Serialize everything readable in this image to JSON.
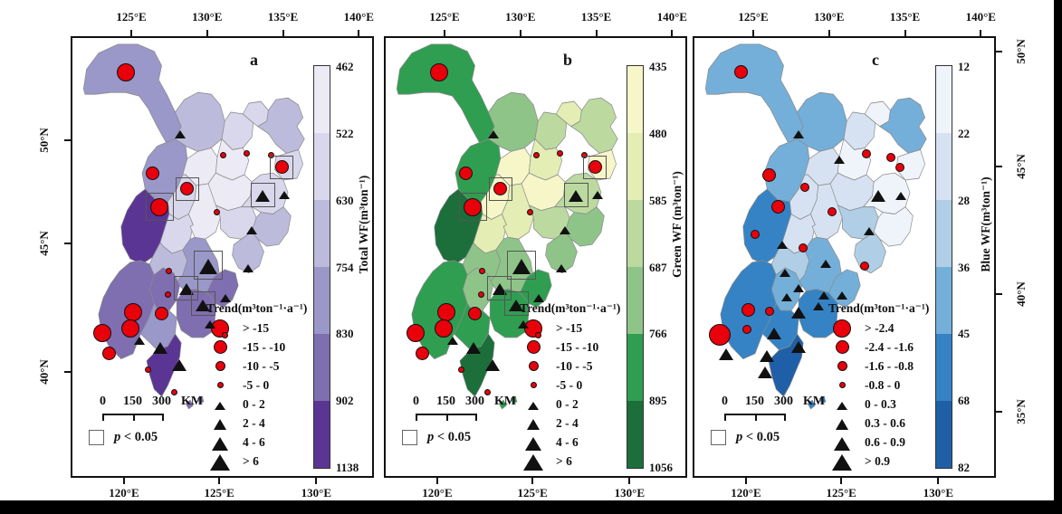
{
  "figure": {
    "background": "#ffffff",
    "marker_style": {
      "circle_color": "#e8000b",
      "triangle_color": "#111111",
      "outline_color": "#111111",
      "significance_box_color": "#555555"
    },
    "left_axis": {
      "ticks": [
        "50°N",
        "45°N",
        "40°N"
      ]
    },
    "right_axis": {
      "ticks": [
        "50°N",
        "45°N",
        "40°N",
        "35°N"
      ]
    },
    "panels": [
      {
        "label": "a",
        "top_axis_ticks": [
          "125°E",
          "130°E",
          "135°E",
          "140°E"
        ],
        "bottom_axis_ticks": [
          "120°E",
          "125°E",
          "130°E"
        ],
        "colorbar": {
          "title": "Total WF(m³ton⁻¹)",
          "tick_labels": [
            "462",
            "522",
            "630",
            "754",
            "830",
            "902",
            "1138"
          ],
          "segment_colors": [
            "#ecebf5",
            "#d9d7eb",
            "#bdbbdc",
            "#9a97c9",
            "#7f6eb0",
            "#5b3594"
          ]
        },
        "legend": {
          "title": "Trend(m³ton⁻¹·a⁻¹)",
          "circle_labels": [
            "> -15",
            "-15 - -10",
            "-10 - -5",
            "-5 - 0"
          ],
          "triangle_labels": [
            "0 - 2",
            "2 - 4",
            "4 - 6",
            "> 6"
          ]
        },
        "scalebar_labels": [
          "0",
          "150",
          "300",
          "KM"
        ],
        "significance_label": "p < 0.05",
        "map": {
          "region_color_indices": [
            4,
            3,
            2,
            2,
            3,
            2,
            4,
            1,
            1,
            1,
            2,
            2,
            6,
            2,
            1,
            2,
            3,
            3,
            3,
            4,
            5,
            5,
            4,
            5,
            5,
            6
          ],
          "markers": [
            {
              "shape": "circle",
              "size": "L",
              "x": 17.6,
              "y": 7.8
            },
            {
              "shape": "triangle",
              "size": "S",
              "x": 35.5,
              "y": 21.5
            },
            {
              "shape": "circle",
              "size": "M",
              "x": 26.3,
              "y": 30.7
            },
            {
              "shape": "circle",
              "size": "M",
              "x": 37.9,
              "y": 34.2,
              "boxed": true
            },
            {
              "shape": "circle",
              "size": "L",
              "x": 28.7,
              "y": 38.3,
              "boxed": true
            },
            {
              "shape": "circle",
              "size": "T",
              "x": 49.6,
              "y": 26.6
            },
            {
              "shape": "circle",
              "size": "T",
              "x": 57.6,
              "y": 26.2
            },
            {
              "shape": "circle",
              "size": "T",
              "x": 65.4,
              "y": 26.6
            },
            {
              "shape": "circle",
              "size": "M",
              "x": 69.0,
              "y": 29.3,
              "boxed": true
            },
            {
              "shape": "triangle",
              "size": "M",
              "x": 62.7,
              "y": 35.5,
              "boxed": true
            },
            {
              "shape": "triangle",
              "size": "S",
              "x": 69.9,
              "y": 35.2
            },
            {
              "shape": "circle",
              "size": "T",
              "x": 47.5,
              "y": 39.5
            },
            {
              "shape": "triangle",
              "size": "S",
              "x": 59.1,
              "y": 43.2
            },
            {
              "shape": "triangle",
              "size": "L",
              "x": 44.8,
              "y": 51.4,
              "boxed": true
            },
            {
              "shape": "triangle",
              "size": "S",
              "x": 57.9,
              "y": 51.8
            },
            {
              "shape": "circle",
              "size": "T",
              "x": 31.9,
              "y": 52.7
            },
            {
              "shape": "triangle",
              "size": "M",
              "x": 37.6,
              "y": 56.6,
              "boxed": true
            },
            {
              "shape": "circle",
              "size": "T",
              "x": 31.6,
              "y": 58.0
            },
            {
              "shape": "triangle",
              "size": "M",
              "x": 43.0,
              "y": 60.2,
              "boxed": true
            },
            {
              "shape": "triangle",
              "size": "S",
              "x": 50.4,
              "y": 58.6
            },
            {
              "shape": "circle",
              "size": "L",
              "x": 20.0,
              "y": 62.1
            },
            {
              "shape": "circle",
              "size": "M",
              "x": 29.3,
              "y": 62.3
            },
            {
              "shape": "circle",
              "size": "L",
              "x": 19.1,
              "y": 65.8
            },
            {
              "shape": "circle",
              "size": "L",
              "x": 9.9,
              "y": 66.8
            },
            {
              "shape": "triangle",
              "size": "S",
              "x": 22.1,
              "y": 68.2
            },
            {
              "shape": "triangle",
              "size": "M",
              "x": 29.0,
              "y": 69.9
            },
            {
              "shape": "circle",
              "size": "M",
              "x": 12.2,
              "y": 71.5
            },
            {
              "shape": "triangle",
              "size": "M",
              "x": 35.2,
              "y": 73.8
            },
            {
              "shape": "circle",
              "size": "T",
              "x": 24.8,
              "y": 75.2
            },
            {
              "shape": "circle",
              "size": "T",
              "x": 33.7,
              "y": 80.3
            },
            {
              "shape": "triangle",
              "size": "S",
              "x": 45.4,
              "y": 64.5
            },
            {
              "shape": "circle",
              "size": "T",
              "x": 50.4,
              "y": 67.4
            }
          ]
        }
      },
      {
        "label": "b",
        "top_axis_ticks": [
          "125°E",
          "130°E",
          "135°E",
          "140°E"
        ],
        "bottom_axis_ticks": [
          "120°E",
          "125°E",
          "130°E"
        ],
        "colorbar": {
          "title": "Green WF (m³ton⁻¹)",
          "tick_labels": [
            "435",
            "480",
            "585",
            "687",
            "766",
            "895",
            "1056"
          ],
          "segment_colors": [
            "#f6f6c9",
            "#e4edb4",
            "#bcda9f",
            "#8fc489",
            "#2f9e51",
            "#1c6f3a"
          ]
        },
        "legend": {
          "title": "Trend(m³ton⁻¹·a⁻¹)",
          "circle_labels": [
            "> -15",
            "-15 - -10",
            "-10 - -5",
            "-5 - 0"
          ],
          "triangle_labels": [
            "0 - 2",
            "2 - 4",
            "4 - 6",
            "> 6"
          ]
        },
        "scalebar_labels": [
          "0",
          "150",
          "300",
          "KM"
        ],
        "significance_label": "p < 0.05",
        "map": {
          "region_color_indices": [
            5,
            4,
            3,
            2,
            3,
            1,
            5,
            1,
            2,
            1,
            3,
            1,
            6,
            2,
            2,
            3,
            4,
            4,
            4,
            4,
            5,
            4,
            5,
            5,
            5,
            6
          ],
          "markers": [
            {
              "shape": "circle",
              "size": "L",
              "x": 17.6,
              "y": 7.8
            },
            {
              "shape": "triangle",
              "size": "S",
              "x": 35.5,
              "y": 21.5
            },
            {
              "shape": "circle",
              "size": "M",
              "x": 26.3,
              "y": 30.7
            },
            {
              "shape": "circle",
              "size": "M",
              "x": 37.9,
              "y": 34.2,
              "boxed": true
            },
            {
              "shape": "circle",
              "size": "L",
              "x": 28.7,
              "y": 38.3,
              "boxed": true
            },
            {
              "shape": "circle",
              "size": "T",
              "x": 49.6,
              "y": 26.6
            },
            {
              "shape": "circle",
              "size": "T",
              "x": 57.6,
              "y": 26.2
            },
            {
              "shape": "circle",
              "size": "T",
              "x": 65.4,
              "y": 26.6
            },
            {
              "shape": "circle",
              "size": "M",
              "x": 69.0,
              "y": 29.3,
              "boxed": true
            },
            {
              "shape": "triangle",
              "size": "M",
              "x": 62.7,
              "y": 35.5,
              "boxed": true
            },
            {
              "shape": "triangle",
              "size": "S",
              "x": 69.9,
              "y": 35.2
            },
            {
              "shape": "circle",
              "size": "T",
              "x": 47.5,
              "y": 39.5
            },
            {
              "shape": "triangle",
              "size": "S",
              "x": 59.1,
              "y": 43.2
            },
            {
              "shape": "triangle",
              "size": "L",
              "x": 44.8,
              "y": 51.4,
              "boxed": true
            },
            {
              "shape": "triangle",
              "size": "S",
              "x": 57.9,
              "y": 51.8
            },
            {
              "shape": "circle",
              "size": "T",
              "x": 31.9,
              "y": 52.7
            },
            {
              "shape": "triangle",
              "size": "M",
              "x": 37.6,
              "y": 56.6,
              "boxed": true
            },
            {
              "shape": "circle",
              "size": "T",
              "x": 31.6,
              "y": 58.0
            },
            {
              "shape": "triangle",
              "size": "M",
              "x": 43.0,
              "y": 60.2,
              "boxed": true
            },
            {
              "shape": "triangle",
              "size": "S",
              "x": 50.4,
              "y": 58.6
            },
            {
              "shape": "circle",
              "size": "L",
              "x": 20.0,
              "y": 62.1
            },
            {
              "shape": "circle",
              "size": "M",
              "x": 29.3,
              "y": 62.3
            },
            {
              "shape": "circle",
              "size": "L",
              "x": 19.1,
              "y": 65.8
            },
            {
              "shape": "circle",
              "size": "L",
              "x": 9.9,
              "y": 66.8
            },
            {
              "shape": "triangle",
              "size": "S",
              "x": 22.1,
              "y": 68.2
            },
            {
              "shape": "triangle",
              "size": "M",
              "x": 29.0,
              "y": 69.9
            },
            {
              "shape": "circle",
              "size": "M",
              "x": 12.2,
              "y": 71.5
            },
            {
              "shape": "triangle",
              "size": "M",
              "x": 35.2,
              "y": 73.8
            },
            {
              "shape": "circle",
              "size": "T",
              "x": 24.8,
              "y": 75.2
            },
            {
              "shape": "circle",
              "size": "T",
              "x": 33.7,
              "y": 80.3
            },
            {
              "shape": "triangle",
              "size": "S",
              "x": 45.4,
              "y": 64.5
            },
            {
              "shape": "circle",
              "size": "T",
              "x": 50.4,
              "y": 67.4
            }
          ]
        }
      },
      {
        "label": "c",
        "top_axis_ticks": [
          "125°E",
          "130°E",
          "135°E",
          "140°E"
        ],
        "bottom_axis_ticks": [
          "120°E",
          "125°E",
          "130°E"
        ],
        "colorbar": {
          "title": "Blue WF(m³ton⁻¹)",
          "tick_labels": [
            "12",
            "22",
            "28",
            "36",
            "45",
            "68",
            "82"
          ],
          "segment_colors": [
            "#eff4fb",
            "#d6e2f2",
            "#b0cfe6",
            "#74afd9",
            "#3583c4",
            "#1f5fa8"
          ]
        },
        "legend": {
          "title": "Trend(m³ton⁻¹·a⁻¹)",
          "circle_labels": [
            "> -2.4",
            "-2.4 - -1.6",
            "-1.6 - -0.8",
            "-0.8 - 0"
          ],
          "triangle_labels": [
            "0 - 0.3",
            "0.3 - 0.6",
            "0.6 - 0.9",
            "> 0.9"
          ]
        },
        "scalebar_labels": [
          "0",
          "150",
          "300",
          "KM"
        ],
        "significance_label": "p < 0.05",
        "map": {
          "region_color_indices": [
            4,
            4,
            2,
            1,
            4,
            1,
            4,
            2,
            1,
            2,
            1,
            2,
            5,
            2,
            2,
            3,
            1,
            3,
            3,
            4,
            5,
            4,
            5,
            5,
            4,
            6
          ],
          "markers": [
            {
              "shape": "circle",
              "size": "M",
              "x": 15.5,
              "y": 7.6
            },
            {
              "shape": "triangle",
              "size": "S",
              "x": 34.3,
              "y": 21.5
            },
            {
              "shape": "circle",
              "size": "S",
              "x": 56.7,
              "y": 26.2
            },
            {
              "shape": "triangle",
              "size": "S",
              "x": 47.8,
              "y": 27.3
            },
            {
              "shape": "circle",
              "size": "S",
              "x": 64.8,
              "y": 27.0
            },
            {
              "shape": "circle",
              "size": "S",
              "x": 67.8,
              "y": 29.3
            },
            {
              "shape": "circle",
              "size": "M",
              "x": 24.5,
              "y": 31.1
            },
            {
              "shape": "circle",
              "size": "S",
              "x": 36.4,
              "y": 33.8
            },
            {
              "shape": "triangle",
              "size": "M",
              "x": 60.6,
              "y": 35.5
            },
            {
              "shape": "triangle",
              "size": "S",
              "x": 68.1,
              "y": 35.5
            },
            {
              "shape": "circle",
              "size": "M",
              "x": 27.5,
              "y": 38.3
            },
            {
              "shape": "circle",
              "size": "S",
              "x": 45.4,
              "y": 39.3
            },
            {
              "shape": "triangle",
              "size": "S",
              "x": 57.6,
              "y": 43.4
            },
            {
              "shape": "circle",
              "size": "S",
              "x": 20.0,
              "y": 44.5
            },
            {
              "shape": "triangle",
              "size": "S",
              "x": 29.0,
              "y": 46.5
            },
            {
              "shape": "circle",
              "size": "S",
              "x": 35.8,
              "y": 47.5
            },
            {
              "shape": "triangle",
              "size": "S",
              "x": 43.3,
              "y": 50.8
            },
            {
              "shape": "circle",
              "size": "S",
              "x": 56.1,
              "y": 51.6
            },
            {
              "shape": "triangle",
              "size": "S",
              "x": 29.9,
              "y": 52.9
            },
            {
              "shape": "triangle",
              "size": "S",
              "x": 34.3,
              "y": 56.4
            },
            {
              "shape": "triangle",
              "size": "S",
              "x": 42.7,
              "y": 58.0
            },
            {
              "shape": "triangle",
              "size": "S",
              "x": 48.7,
              "y": 58.0
            },
            {
              "shape": "triangle",
              "size": "S",
              "x": 30.4,
              "y": 58.4
            },
            {
              "shape": "triangle",
              "size": "S",
              "x": 40.9,
              "y": 60.5
            },
            {
              "shape": "circle",
              "size": "M",
              "x": 17.9,
              "y": 61.5
            },
            {
              "shape": "circle",
              "size": "S",
              "x": 24.8,
              "y": 61.9
            },
            {
              "shape": "triangle",
              "size": "M",
              "x": 34.3,
              "y": 61.9
            },
            {
              "shape": "circle",
              "size": "S",
              "x": 17.3,
              "y": 66.0
            },
            {
              "shape": "circle",
              "size": "XL",
              "x": 8.4,
              "y": 67.2
            },
            {
              "shape": "triangle",
              "size": "M",
              "x": 26.3,
              "y": 66.6
            },
            {
              "shape": "triangle",
              "size": "M",
              "x": 34.3,
              "y": 69.7
            },
            {
              "shape": "triangle",
              "size": "M",
              "x": 10.4,
              "y": 71.3
            },
            {
              "shape": "triangle",
              "size": "M",
              "x": 23.9,
              "y": 71.7
            },
            {
              "shape": "triangle",
              "size": "M",
              "x": 23.3,
              "y": 75.4
            }
          ]
        }
      }
    ]
  }
}
